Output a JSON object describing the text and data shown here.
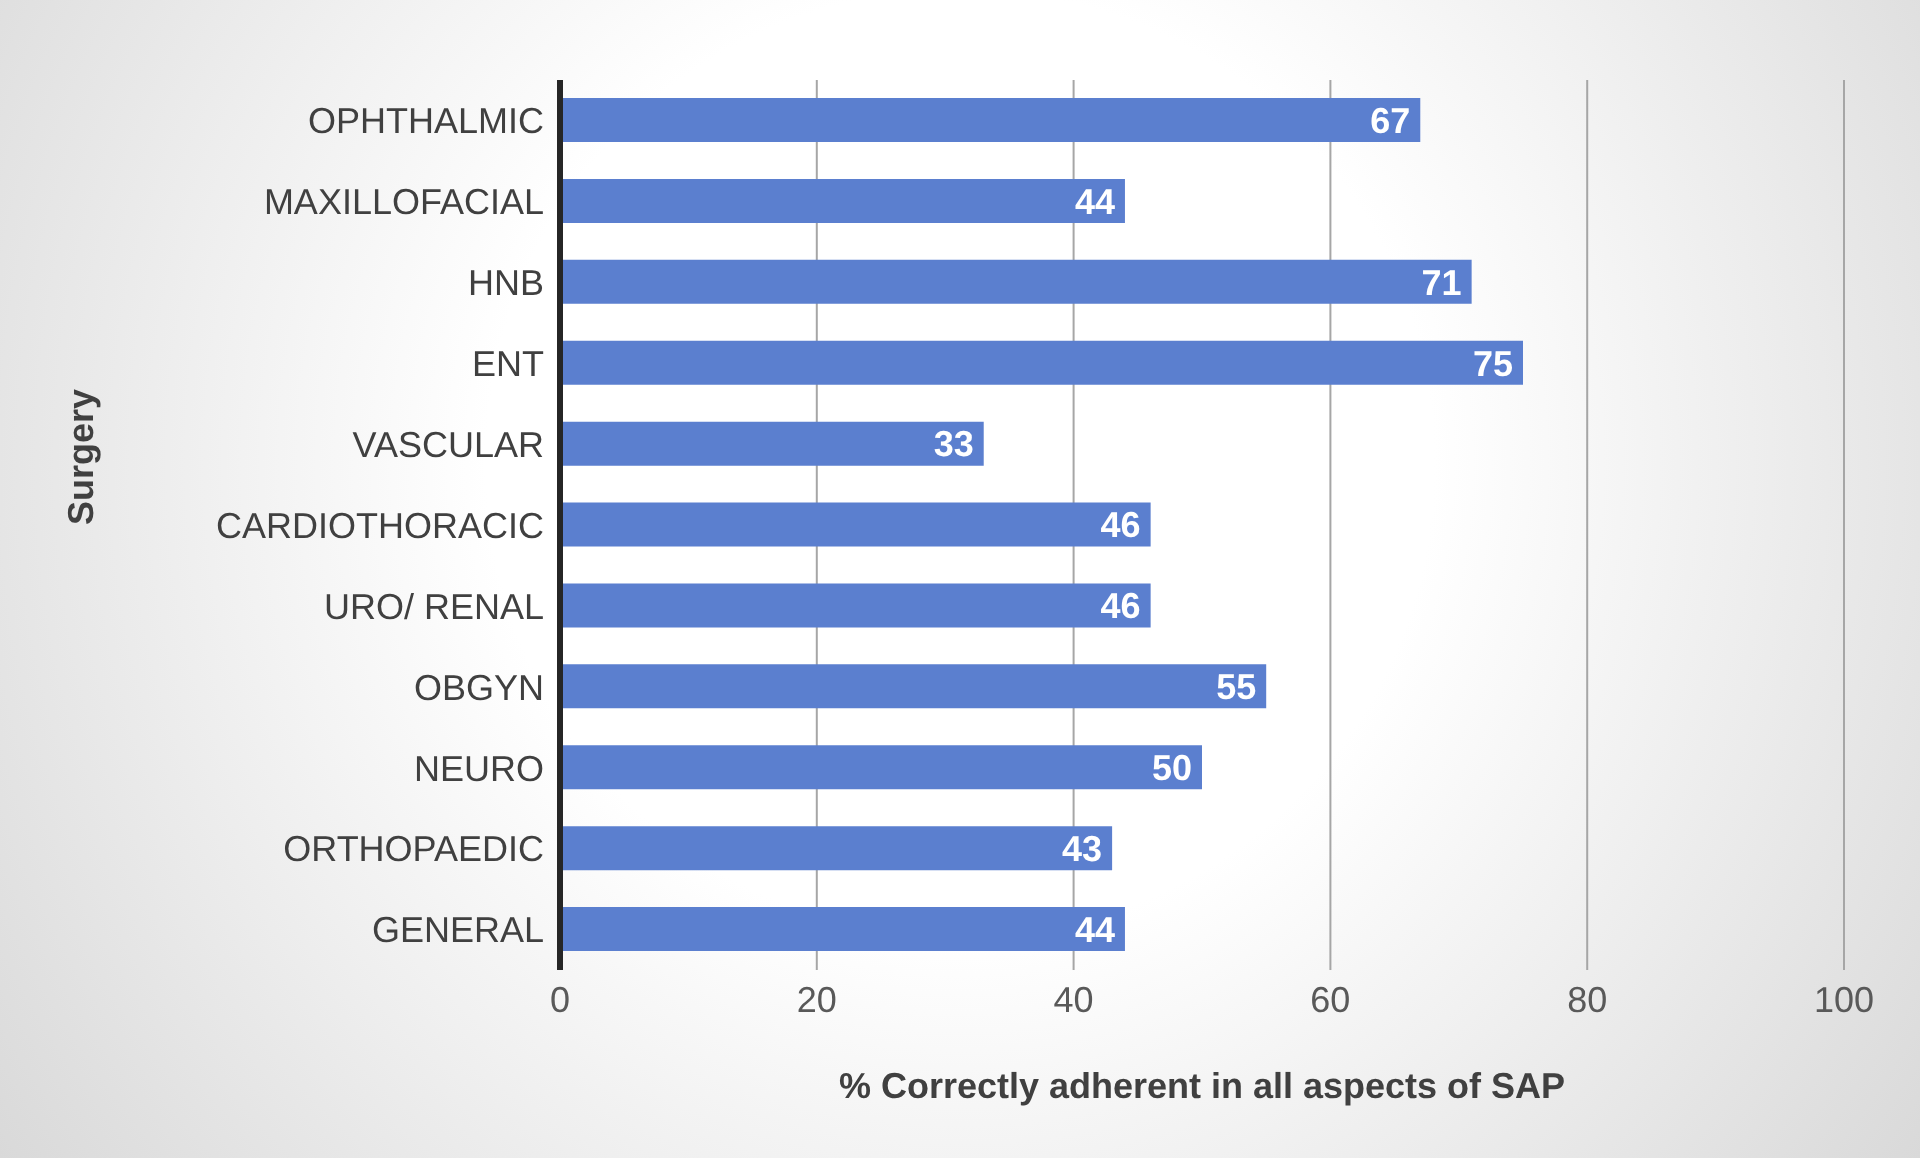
{
  "chart_data": {
    "type": "bar",
    "orientation": "horizontal",
    "xlabel": "% Correctly adherent in all aspects of SAP",
    "ylabel": "Surgery",
    "categories": [
      "OPHTHALMIC",
      "MAXILLOFACIAL",
      "HNB",
      "ENT",
      "VASCULAR",
      "CARDIOTHORACIC",
      "URO/ RENAL",
      "OBGYN",
      "NEURO",
      "ORTHOPAEDIC",
      "GENERAL"
    ],
    "values": [
      67,
      44,
      71,
      75,
      33,
      46,
      46,
      55,
      50,
      43,
      44
    ],
    "color": "#5b7fcf",
    "xlim": [
      0,
      100
    ],
    "xticks": [
      0,
      20,
      40,
      60,
      80,
      100
    ],
    "grid": "x",
    "data_labels": true
  }
}
